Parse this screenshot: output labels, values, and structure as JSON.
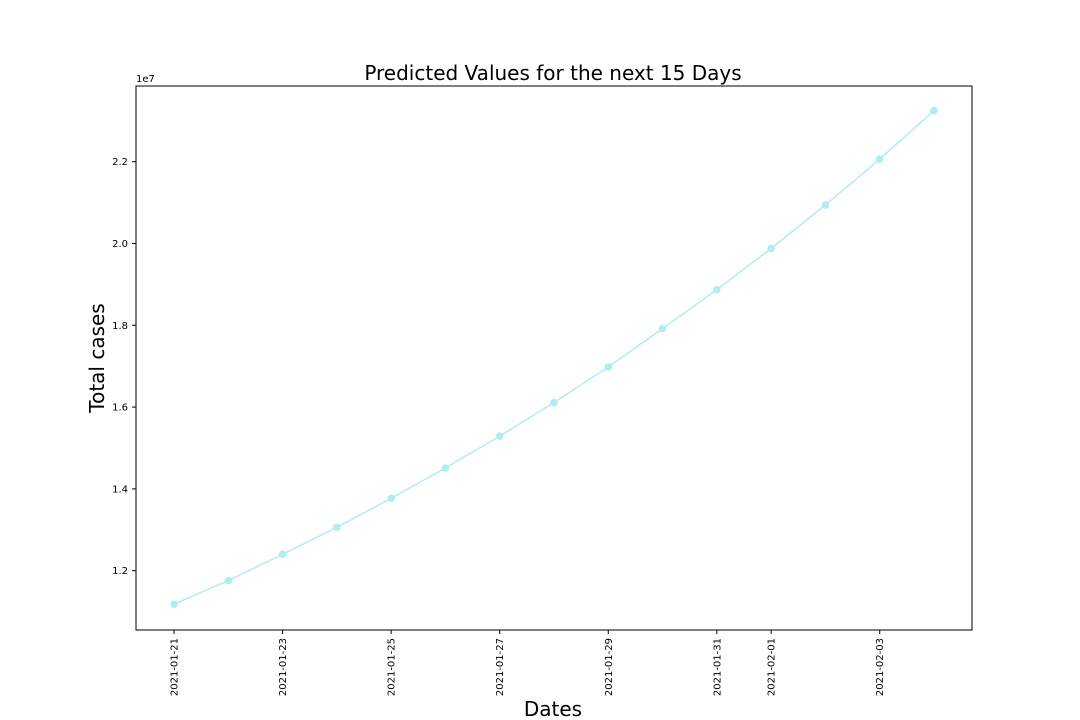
{
  "chart_data": {
    "type": "line",
    "title": "Predicted Values for the next 15 Days",
    "xlabel": "Dates",
    "ylabel": "Total cases",
    "y_offset_label": "1e7",
    "y_multiplier": 10000000,
    "x": [
      "2021-01-21",
      "2021-01-22",
      "2021-01-23",
      "2021-01-24",
      "2021-01-25",
      "2021-01-26",
      "2021-01-27",
      "2021-01-28",
      "2021-01-29",
      "2021-01-30",
      "2021-01-31",
      "2021-02-01",
      "2021-02-02",
      "2021-02-03",
      "2021-02-04"
    ],
    "x_tick_labels": [
      "2021-01-21",
      "2021-01-23",
      "2021-01-25",
      "2021-01-27",
      "2021-01-29",
      "2021-01-31",
      "2021-02-01",
      "2021-02-03"
    ],
    "y_ticks": [
      1.2,
      1.4,
      1.6,
      1.8,
      2.0,
      2.2
    ],
    "y_tick_labels": [
      "1.2",
      "1.4",
      "1.6",
      "1.8",
      "2.0",
      "2.2"
    ],
    "ylim": [
      1.055,
      2.385
    ],
    "series": [
      {
        "color": "#aeeef0",
        "values": [
          11180000,
          11760000,
          12400000,
          13060000,
          13770000,
          14510000,
          15290000,
          16110000,
          16980000,
          17920000,
          18870000,
          19880000,
          20940000,
          22060000,
          23250000
        ]
      }
    ],
    "grid": false
  }
}
